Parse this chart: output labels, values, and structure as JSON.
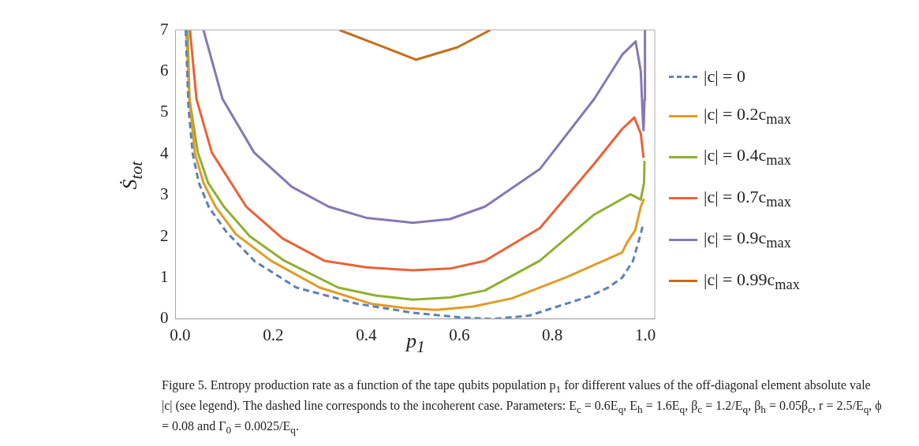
{
  "chart_data": {
    "type": "line",
    "xlabel": "p$_{1}$",
    "ylabel": "Ṡ$_{tot}$",
    "xlim": [
      -0.01,
      1.02
    ],
    "ylim": [
      0,
      7
    ],
    "xticks": [
      {
        "value": 0,
        "label": "0.0"
      },
      {
        "value": 0.2,
        "label": "0.2"
      },
      {
        "value": 0.4,
        "label": "0.4"
      },
      {
        "value": 0.6,
        "label": "0.6"
      },
      {
        "value": 0.8,
        "label": "0.8"
      },
      {
        "value": 1,
        "label": "1.0"
      }
    ],
    "yticks": [
      0,
      1,
      2,
      3,
      4,
      5,
      6,
      7
    ],
    "grid": false,
    "legend": "right",
    "marker": "none",
    "series": [
      {
        "name": "|c| = 0",
        "color": "#5e81b5",
        "line_style": "dashed",
        "x": [
          0.012,
          0.018,
          0.027,
          0.04,
          0.062,
          0.1,
          0.16,
          0.25,
          0.38,
          0.5,
          0.6,
          0.67,
          0.75,
          0.83,
          0.88,
          0.92,
          0.95,
          0.973,
          0.99,
          0.995
        ],
        "values": [
          7,
          5.1,
          4.0,
          3.3,
          2.7,
          2.1,
          1.4,
          0.76,
          0.37,
          0.15,
          0.04,
          0.0,
          0.08,
          0.37,
          0.55,
          0.76,
          1.0,
          1.4,
          2.06,
          2.3
        ]
      },
      {
        "name": "|c| = 0.2c$_{max}$",
        "color": "#e19c24",
        "line_style": "solid",
        "x": [
          0.013,
          0.02,
          0.032,
          0.05,
          0.076,
          0.12,
          0.195,
          0.3,
          0.41,
          0.478,
          0.55,
          0.63,
          0.713,
          0.832,
          0.95,
          0.96,
          0.978,
          0.99,
          0.997
        ],
        "values": [
          7,
          5.3,
          4.0,
          3.3,
          2.72,
          2.05,
          1.41,
          0.76,
          0.37,
          0.27,
          0.22,
          0.3,
          0.5,
          1.02,
          1.61,
          1.84,
          2.15,
          2.72,
          2.91
        ]
      },
      {
        "name": "|c| = 0.4c$_{max}$",
        "color": "#8fb032",
        "line_style": "solid",
        "x": [
          0.016,
          0.02,
          0.038,
          0.06,
          0.094,
          0.15,
          0.224,
          0.34,
          0.42,
          0.5,
          0.58,
          0.655,
          0.773,
          0.89,
          0.968,
          0.99,
          0.997,
          0.998
        ],
        "values": [
          7,
          5.33,
          4.03,
          3.3,
          2.72,
          2.0,
          1.41,
          0.76,
          0.57,
          0.47,
          0.52,
          0.69,
          1.41,
          2.53,
          3.02,
          2.89,
          3.3,
          3.83
        ]
      },
      {
        "name": "|c| = 0.7c$_{max}$",
        "color": "#eb6235",
        "line_style": "solid",
        "x": [
          0.021,
          0.035,
          0.068,
          0.142,
          0.22,
          0.31,
          0.4,
          0.5,
          0.58,
          0.655,
          0.773,
          0.89,
          0.95,
          0.976,
          0.99,
          0.996
        ],
        "values": [
          7,
          5.33,
          4.03,
          2.72,
          1.95,
          1.41,
          1.25,
          1.18,
          1.22,
          1.41,
          2.2,
          3.76,
          4.6,
          4.88,
          4.49,
          3.9
        ]
      },
      {
        "name": "|c| = 0.9c$_{max}$",
        "color": "#8778b3",
        "line_style": "solid",
        "x": [
          0.05,
          0.091,
          0.159,
          0.24,
          0.319,
          0.4,
          0.5,
          0.58,
          0.655,
          0.773,
          0.89,
          0.95,
          0.979,
          0.99,
          0.995,
          0.996,
          0.998,
          0.999
        ],
        "values": [
          7,
          5.33,
          4.03,
          3.2,
          2.72,
          2.45,
          2.33,
          2.42,
          2.72,
          3.63,
          5.33,
          6.4,
          6.72,
          6.0,
          4.7,
          4.57,
          5.3,
          7
        ]
      },
      {
        "name": "|c| = 0.99c$_{max}$",
        "color": "#c56e1a",
        "line_style": "solid",
        "x": [
          0.342,
          0.425,
          0.5,
          0.507,
          0.596,
          0.667
        ],
        "values": [
          7,
          6.64,
          6.31,
          6.28,
          6.58,
          7.0
        ]
      }
    ],
    "annotations": [
      "Figure 5. Entropy production rate as a function of the tape qubits population p$_{1}$ for different values of the off-diagonal element absolute vale |c| (see legend). The dashed line corresponds to the incoherent case. Parameters: E$_{c}$ = 0.6E$_{q}$, E$_{h}$ = 1.6E$_{q}$, β$_{c}$ = 1.2/E$_{q}$, β$_{h}$ = 0.05β$_{c}$, r = 2.5/E$_{q}$, ϕ = 0.08 and Γ$_{0}$ = 0.0025/E$_{q}$."
    ]
  }
}
